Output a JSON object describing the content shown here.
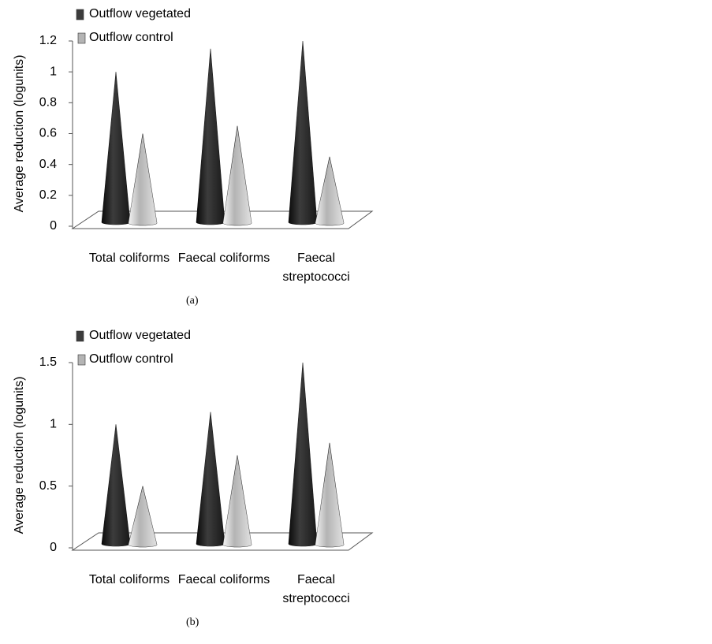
{
  "chart_data": [
    {
      "type": "cone",
      "y_label": "Average reduction (logunits)",
      "caption": "(a)",
      "categories": [
        "Total coliforms",
        "Faecal coliforms",
        "Faecal streptococci"
      ],
      "series": [
        {
          "name": "Outflow vegetated",
          "color": "#3c3c3c",
          "values": [
            1.0,
            1.15,
            1.2
          ]
        },
        {
          "name": "Outflow control",
          "color": "#b4b4b4",
          "values": [
            0.6,
            0.65,
            0.45
          ]
        }
      ],
      "ylim": [
        0,
        1.2
      ],
      "yticks": [
        0,
        0.2,
        0.4,
        0.6,
        0.8,
        1,
        1.2
      ]
    },
    {
      "type": "cone",
      "y_label": "Average reduction (logunits)",
      "caption": "(b)",
      "categories": [
        "Total coliforms",
        "Faecal coliforms",
        "Faecal streptococci"
      ],
      "series": [
        {
          "name": "Outflow vegetated",
          "color": "#3c3c3c",
          "values": [
            1.0,
            1.1,
            1.5
          ]
        },
        {
          "name": "Outflow control",
          "color": "#b4b4b4",
          "values": [
            0.5,
            0.75,
            0.85
          ]
        }
      ],
      "ylim": [
        0,
        1.5
      ],
      "yticks": [
        0,
        0.5,
        1,
        1.5
      ]
    }
  ]
}
